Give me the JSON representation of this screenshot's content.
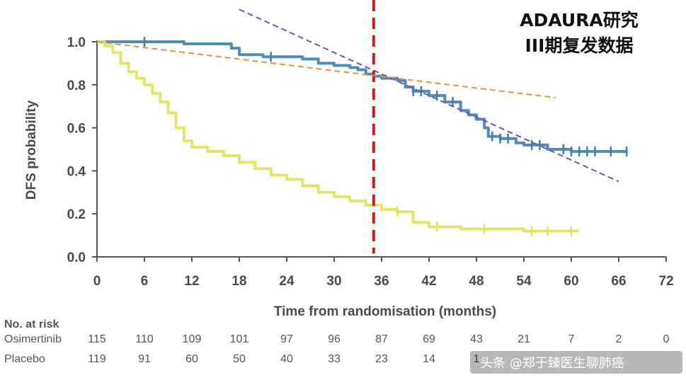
{
  "chart_data": {
    "type": "line",
    "title": "ADAURA研究",
    "subtitle": "III期复发数据",
    "xlabel": "Time from randomisation (months)",
    "ylabel": "DFS probability",
    "xlim": [
      0,
      72
    ],
    "ylim": [
      0,
      1.0
    ],
    "xticks": [
      "0",
      "6",
      "12",
      "18",
      "24",
      "30",
      "36",
      "42",
      "48",
      "54",
      "60",
      "66",
      "72"
    ],
    "yticks": [
      "0.0",
      "0.2",
      "0.4",
      "0.6",
      "0.8",
      "1.0"
    ],
    "grid": false,
    "series": [
      {
        "name": "Osimertinib",
        "color": "#3d7fae",
        "x": [
          0,
          5,
          11,
          17,
          18,
          21,
          26,
          28,
          30,
          32,
          33,
          34,
          35,
          36,
          38,
          39,
          40,
          42,
          44,
          46,
          47,
          48,
          49,
          49.5,
          51,
          53,
          54,
          57,
          60,
          64,
          67
        ],
        "y": [
          1.0,
          1.0,
          0.99,
          0.97,
          0.94,
          0.93,
          0.92,
          0.9,
          0.89,
          0.88,
          0.87,
          0.85,
          0.84,
          0.83,
          0.82,
          0.79,
          0.77,
          0.75,
          0.72,
          0.68,
          0.66,
          0.64,
          0.6,
          0.56,
          0.55,
          0.53,
          0.52,
          0.5,
          0.49,
          0.49,
          0.49
        ],
        "censor_x": [
          6,
          22,
          40,
          41,
          43,
          45,
          50,
          51,
          52,
          55,
          56,
          59,
          60,
          61,
          62,
          63,
          65,
          67
        ]
      },
      {
        "name": "Placebo",
        "color": "#e4e05a",
        "x": [
          0,
          1,
          2,
          3,
          4,
          5,
          6,
          7,
          8,
          9,
          10,
          11,
          12,
          14,
          16,
          18,
          20,
          22,
          24,
          26,
          28,
          30,
          32,
          34,
          36,
          38,
          40,
          42,
          46,
          50,
          54,
          58,
          61
        ],
        "y": [
          1.0,
          0.98,
          0.95,
          0.9,
          0.86,
          0.83,
          0.8,
          0.76,
          0.72,
          0.67,
          0.6,
          0.54,
          0.51,
          0.49,
          0.47,
          0.44,
          0.41,
          0.38,
          0.36,
          0.33,
          0.3,
          0.28,
          0.26,
          0.24,
          0.22,
          0.21,
          0.16,
          0.14,
          0.13,
          0.13,
          0.12,
          0.12,
          0.12
        ],
        "censor_x": [
          38,
          43,
          49,
          55,
          57,
          60
        ]
      }
    ],
    "annotations": [
      {
        "type": "vline",
        "x": 35,
        "color": "#cc1f1f",
        "style": "dashed"
      },
      {
        "type": "trendline",
        "x": [
          0,
          58
        ],
        "y": [
          1.0,
          0.74
        ],
        "color": "#e8913a",
        "style": "dashed"
      },
      {
        "type": "trendline",
        "x": [
          18,
          66
        ],
        "y": [
          1.15,
          0.35
        ],
        "color": "#7b4fb0",
        "style": "dashed"
      }
    ]
  },
  "risk_table": {
    "heading": "No. at risk",
    "rows": [
      {
        "label": "Osimertinib",
        "values": [
          "115",
          "110",
          "109",
          "101",
          "97",
          "96",
          "87",
          "69",
          "43",
          "21",
          "7",
          "2",
          "0"
        ]
      },
      {
        "label": "Placebo",
        "values": [
          "119",
          "91",
          "60",
          "50",
          "40",
          "33",
          "23",
          "14",
          "1"
        ]
      }
    ]
  },
  "watermark": "头条 @郑于臻医生聊肺癌"
}
